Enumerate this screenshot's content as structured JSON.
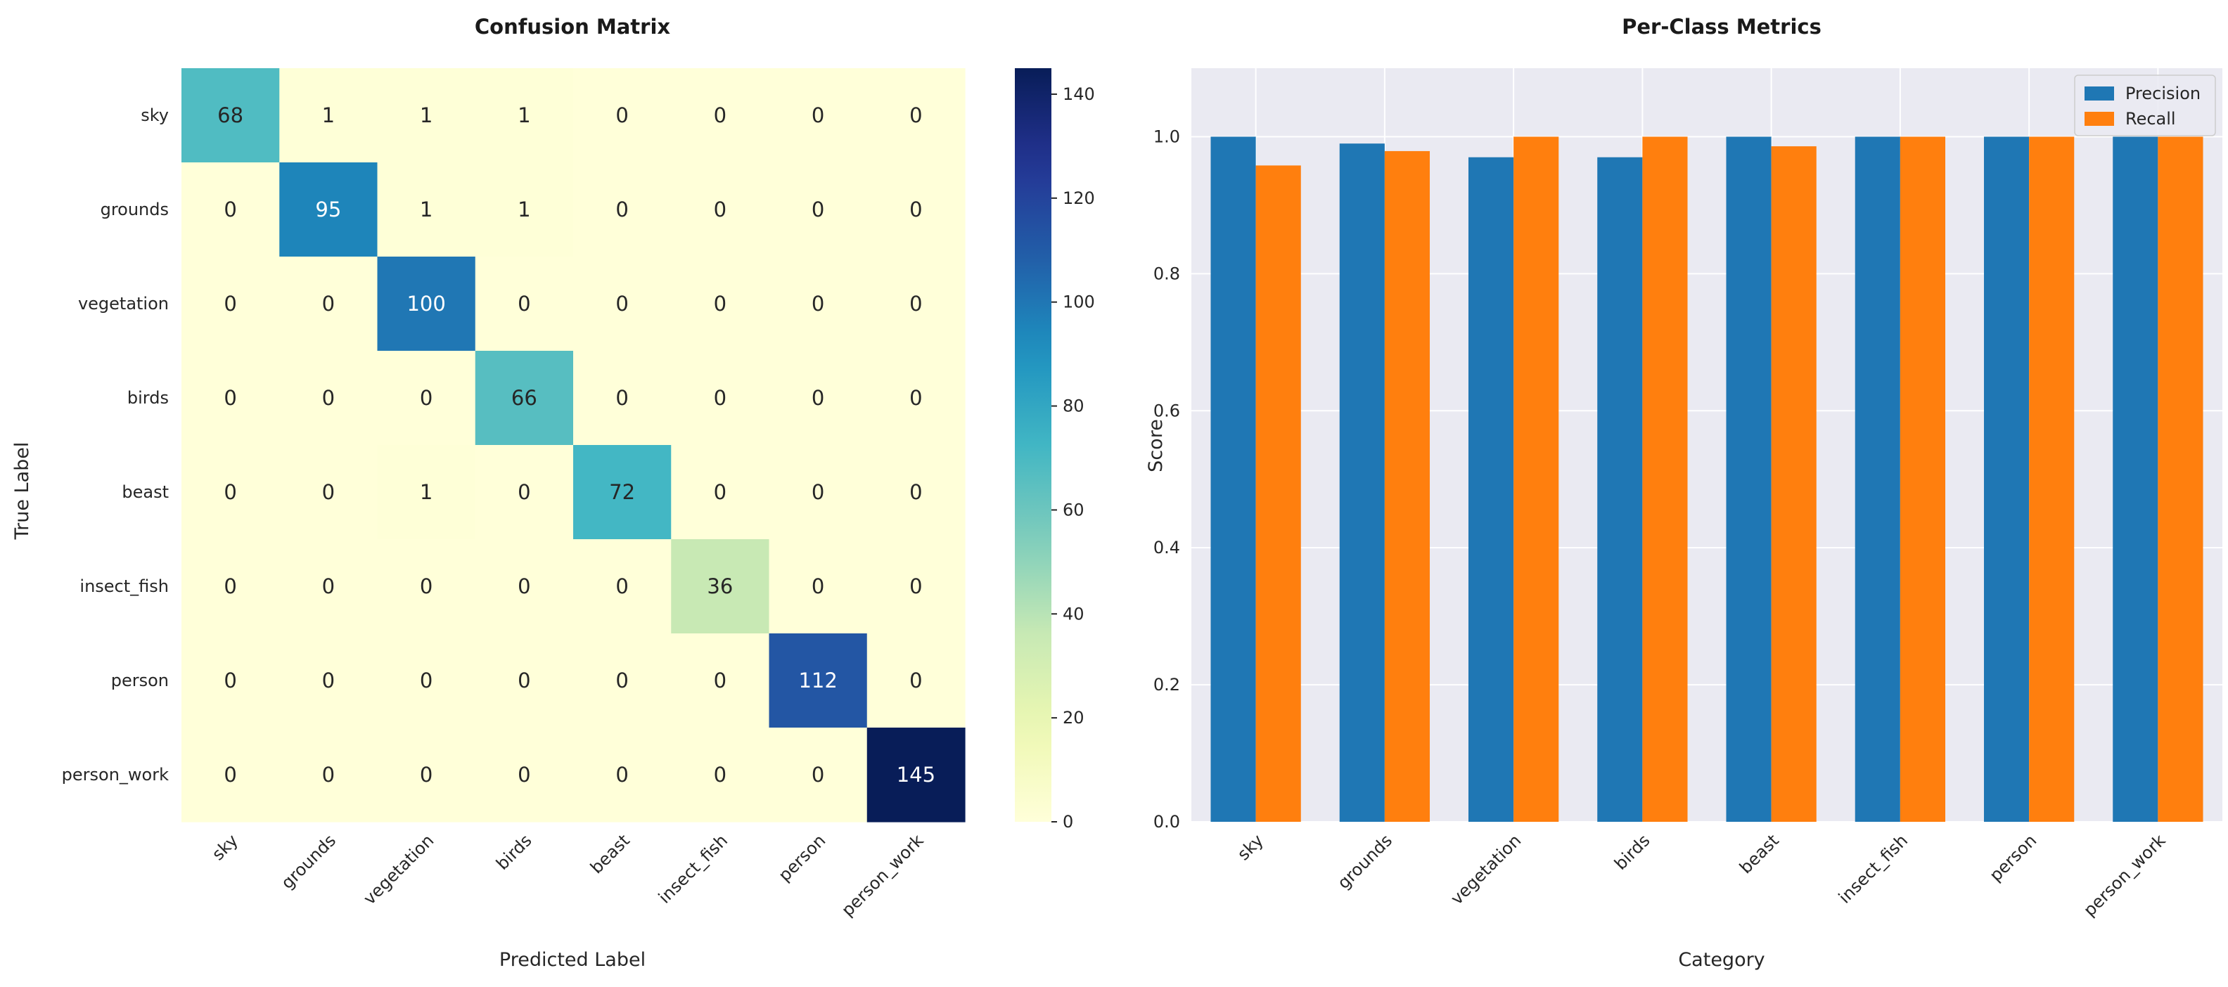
{
  "chart_data": [
    {
      "type": "heatmap",
      "title": "Confusion Matrix",
      "xlabel": "Predicted Label",
      "ylabel": "True Label",
      "categories": [
        "sky",
        "grounds",
        "vegetation",
        "birds",
        "beast",
        "insect_fish",
        "person",
        "person_work"
      ],
      "matrix": [
        [
          68,
          1,
          1,
          1,
          0,
          0,
          0,
          0
        ],
        [
          0,
          95,
          1,
          1,
          0,
          0,
          0,
          0
        ],
        [
          0,
          0,
          100,
          0,
          0,
          0,
          0,
          0
        ],
        [
          0,
          0,
          0,
          66,
          0,
          0,
          0,
          0
        ],
        [
          0,
          0,
          1,
          0,
          72,
          0,
          0,
          0
        ],
        [
          0,
          0,
          0,
          0,
          0,
          36,
          0,
          0
        ],
        [
          0,
          0,
          0,
          0,
          0,
          0,
          112,
          0
        ],
        [
          0,
          0,
          0,
          0,
          0,
          0,
          0,
          145
        ]
      ],
      "colormap": "YlGnBu",
      "colorbar": {
        "range": [
          0,
          145
        ],
        "ticks": [
          0,
          20,
          40,
          60,
          80,
          100,
          120,
          140
        ]
      }
    },
    {
      "type": "bar",
      "title": "Per-Class Metrics",
      "xlabel": "Category",
      "ylabel": "Score",
      "categories": [
        "sky",
        "grounds",
        "vegetation",
        "birds",
        "beast",
        "insect_fish",
        "person",
        "person_work"
      ],
      "series": [
        {
          "name": "Precision",
          "color": "#1f77b4",
          "values": [
            1.0,
            0.99,
            0.97,
            0.97,
            1.0,
            1.0,
            1.0,
            1.0
          ]
        },
        {
          "name": "Recall",
          "color": "#ff7f0e",
          "values": [
            0.958,
            0.979,
            1.0,
            1.0,
            0.986,
            1.0,
            1.0,
            1.0
          ]
        }
      ],
      "ylim": [
        0,
        1.1
      ],
      "yticks": [
        0.0,
        0.2,
        0.4,
        0.6,
        0.8,
        1.0
      ],
      "legend_position": "top-right",
      "grid": true
    }
  ]
}
